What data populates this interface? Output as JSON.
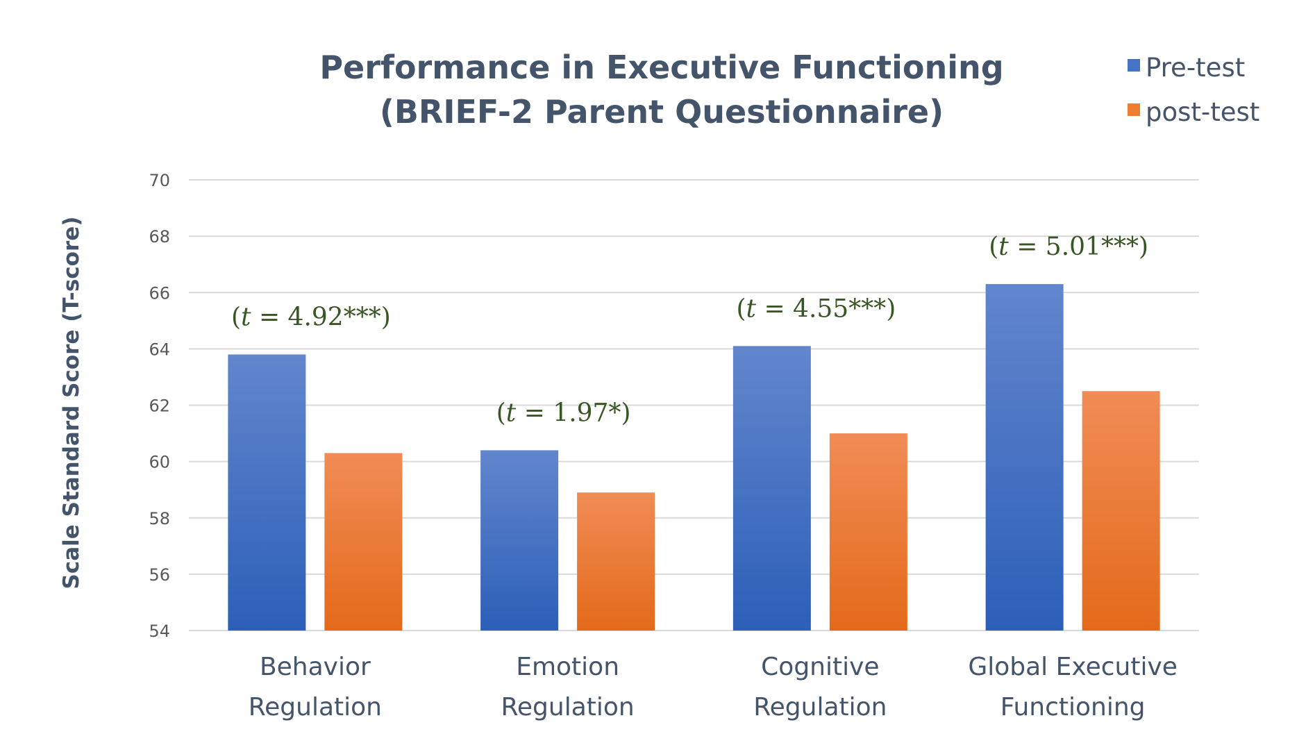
{
  "chart_data": {
    "type": "bar",
    "title_lines": [
      "Performance in Executive Functioning",
      "(BRIEF-2 Parent Questionnaire)"
    ],
    "xlabel": "",
    "ylabel": "Scale Standard Score (T-score)",
    "ylim": [
      54,
      70
    ],
    "yticks": [
      54,
      56,
      58,
      60,
      62,
      64,
      66,
      68,
      70
    ],
    "grid": true,
    "legend_position": "top-right",
    "categories": [
      [
        "Behavior",
        "Regulation"
      ],
      [
        "Emotion",
        "Regulation"
      ],
      [
        "Cognitive",
        "Regulation"
      ],
      [
        "Global Executive",
        "Functioning"
      ]
    ],
    "series": [
      {
        "name": "Pre-test",
        "color": "#4472c4",
        "values": [
          63.8,
          60.4,
          64.1,
          66.3
        ]
      },
      {
        "name": "post-test",
        "color": "#ed7d31",
        "values": [
          60.3,
          58.9,
          61.0,
          62.5
        ]
      }
    ],
    "annotations": [
      {
        "prefix": "(",
        "t": "t",
        "rest": " = 4.92***)"
      },
      {
        "prefix": "(",
        "t": "t",
        "rest": " = 1.97*)"
      },
      {
        "prefix": "(",
        "t": "t",
        "rest": " = 4.55***)"
      },
      {
        "prefix": "(",
        "t": "t",
        "rest": " = 5.01***)"
      }
    ]
  }
}
